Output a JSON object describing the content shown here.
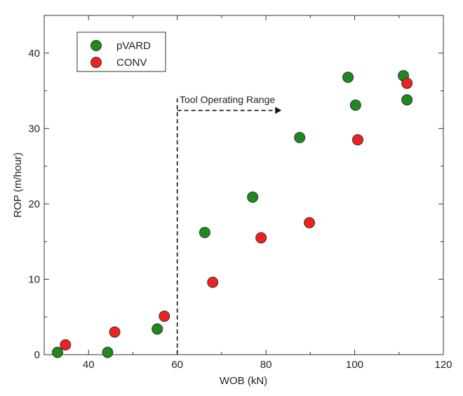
{
  "chart_data": {
    "type": "scatter",
    "xlabel": "WOB (kN)",
    "ylabel": "ROP (m/hour)",
    "xlim": [
      30,
      120
    ],
    "ylim": [
      0,
      45
    ],
    "xticks": [
      40,
      60,
      80,
      100,
      120
    ],
    "yticks": [
      0,
      10,
      20,
      30,
      40
    ],
    "xtick_labels": [
      "40",
      "60",
      "80",
      "100",
      "120"
    ],
    "ytick_labels": [
      "0",
      "10",
      "20",
      "30",
      "40"
    ],
    "grid": false,
    "legend_position": "top-left",
    "series": [
      {
        "name": "pVARD",
        "color": "#1e8a1e",
        "points": [
          {
            "x": 33,
            "y": 0.3
          },
          {
            "x": 44.3,
            "y": 0.3
          },
          {
            "x": 55.5,
            "y": 3.4
          },
          {
            "x": 66.2,
            "y": 16.2
          },
          {
            "x": 77,
            "y": 20.9
          },
          {
            "x": 87.6,
            "y": 28.8
          },
          {
            "x": 98.5,
            "y": 36.8
          },
          {
            "x": 100.2,
            "y": 33.1
          },
          {
            "x": 111,
            "y": 37
          },
          {
            "x": 111.8,
            "y": 33.8
          }
        ]
      },
      {
        "name": "CONV",
        "color": "#ee2222",
        "points": [
          {
            "x": 34.8,
            "y": 1.3
          },
          {
            "x": 45.9,
            "y": 3
          },
          {
            "x": 57.1,
            "y": 5.1
          },
          {
            "x": 68,
            "y": 9.6
          },
          {
            "x": 78.9,
            "y": 15.5
          },
          {
            "x": 89.8,
            "y": 17.5
          },
          {
            "x": 100.7,
            "y": 28.5
          },
          {
            "x": 111.8,
            "y": 36
          }
        ]
      }
    ],
    "annotation": {
      "text": "Tool Operating Range",
      "line_x": 60,
      "line_y_range": [
        0,
        34
      ],
      "arrow_x_range": [
        60,
        83.5
      ],
      "arrow_y": 32.4
    }
  }
}
